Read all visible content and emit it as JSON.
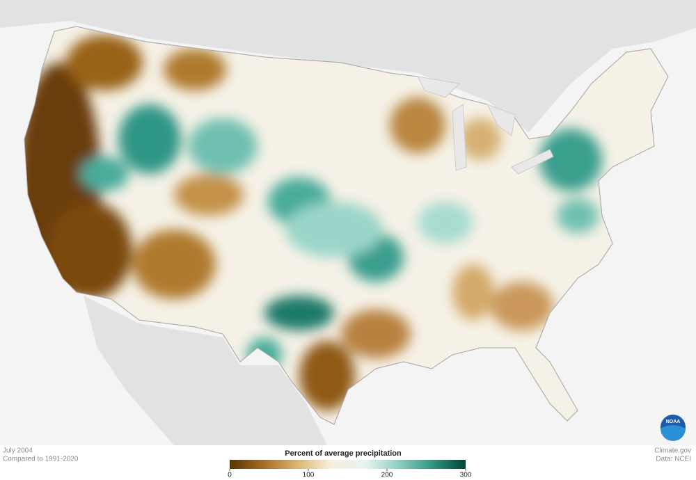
{
  "map": {
    "date": "July 2004",
    "baseline": "Compared to 1991-2020",
    "credit": "Climate.gov",
    "source": "Data: NCEI",
    "logo": "NOAA"
  },
  "legend": {
    "title": "Percent of average precipitation",
    "range": [
      0,
      300
    ],
    "ticks": [
      0,
      100,
      200,
      300
    ],
    "colors": [
      "#5a3405",
      "#a86b1f",
      "#dcb46e",
      "#f7efd9",
      "#e6f4f1",
      "#8fd0c3",
      "#2f9686",
      "#00463a"
    ]
  }
}
